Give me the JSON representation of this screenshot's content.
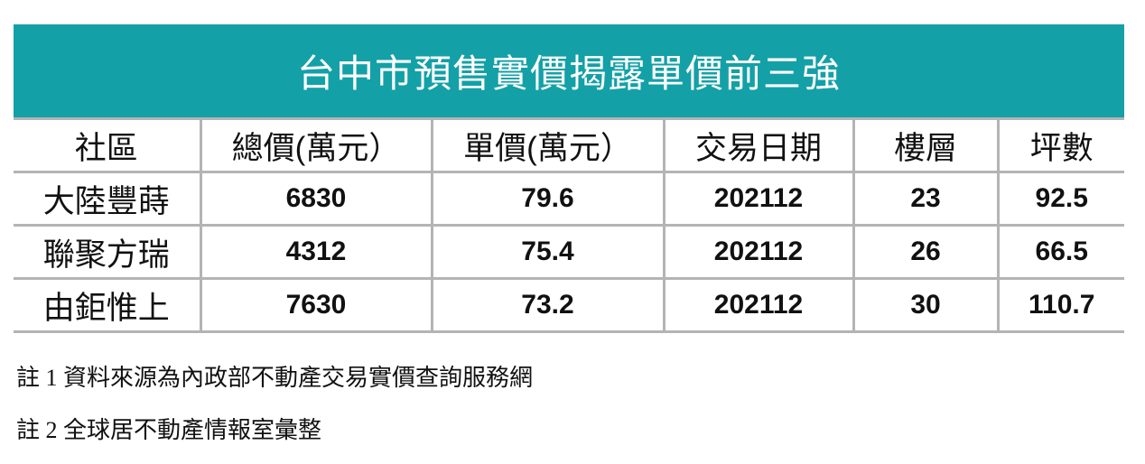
{
  "header": {
    "title": "台中市預售實價揭露單價前三強"
  },
  "table": {
    "columns": [
      "社區",
      "總價(萬元）",
      "單價(萬元）",
      "交易日期",
      "樓層",
      "坪數"
    ],
    "rows": [
      [
        "大陸豐蒔",
        "6830",
        "79.6",
        "202112",
        "23",
        "92.5"
      ],
      [
        "聯聚方瑞",
        "4312",
        "75.4",
        "202112",
        "26",
        "66.5"
      ],
      [
        "由鉅惟上",
        "7630",
        "73.2",
        "202112",
        "30",
        "110.7"
      ]
    ]
  },
  "notes": [
    "註 1 資料來源為內政部不動產交易實價查詢服務網",
    "註 2 全球居不動產情報室彙整"
  ]
}
